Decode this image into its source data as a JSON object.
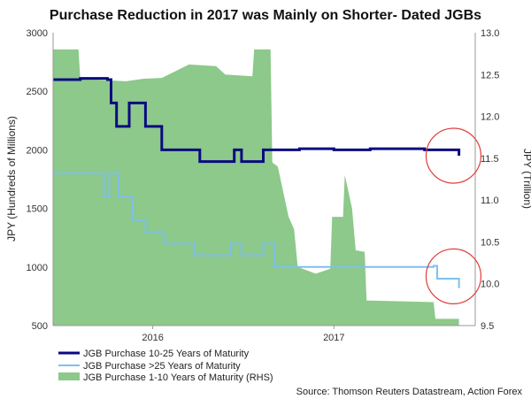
{
  "chart_data": {
    "type": "line",
    "title": "Purchase Reduction in 2017 was Mainly on Shorter- Dated JGBs",
    "ylabel_left": "JPY (Hundreds of Millions)",
    "ylabel_right": "JPY (Trillion)",
    "ylim_left": [
      500,
      3000
    ],
    "ylim_right": [
      9.5,
      13.0
    ],
    "yticks_left": [
      "500",
      "1000",
      "1500",
      "2000",
      "2500",
      "3000"
    ],
    "yticks_right": [
      "9.5",
      "10.0",
      "10.5",
      "11.0",
      "11.5",
      "12.0",
      "12.5",
      "13.0"
    ],
    "xlim": [
      2015.45,
      2017.78
    ],
    "xticks": [
      {
        "label": "2016",
        "x": 2016.0
      },
      {
        "label": "2017",
        "x": 2017.0
      }
    ],
    "series": [
      {
        "name": "JGB Purchase 10-25 Years of Maturity",
        "axis": "left",
        "color": "#0a0a80",
        "kind": "step",
        "points": [
          [
            2015.45,
            2600
          ],
          [
            2015.58,
            2600
          ],
          [
            2015.6,
            2610
          ],
          [
            2015.75,
            2600
          ],
          [
            2015.77,
            2400
          ],
          [
            2015.8,
            2200
          ],
          [
            2015.86,
            2200
          ],
          [
            2015.87,
            2400
          ],
          [
            2015.95,
            2400
          ],
          [
            2015.96,
            2200
          ],
          [
            2016.04,
            2200
          ],
          [
            2016.05,
            2000
          ],
          [
            2016.25,
            2000
          ],
          [
            2016.26,
            1900
          ],
          [
            2016.44,
            1900
          ],
          [
            2016.45,
            2000
          ],
          [
            2016.48,
            2000
          ],
          [
            2016.49,
            1900
          ],
          [
            2016.6,
            1900
          ],
          [
            2016.61,
            2000
          ],
          [
            2016.8,
            2000
          ],
          [
            2016.81,
            2010
          ],
          [
            2017.0,
            2000
          ],
          [
            2017.2,
            2010
          ],
          [
            2017.5,
            2000
          ],
          [
            2017.68,
            2000
          ],
          [
            2017.69,
            1950
          ]
        ]
      },
      {
        "name": "JGB Purchase >25 Years of Maturity",
        "axis": "left",
        "color": "#7fbfee",
        "kind": "step",
        "points": [
          [
            2015.45,
            1800
          ],
          [
            2015.72,
            1800
          ],
          [
            2015.73,
            1600
          ],
          [
            2015.75,
            1600
          ],
          [
            2015.76,
            1800
          ],
          [
            2015.8,
            1800
          ],
          [
            2015.81,
            1600
          ],
          [
            2015.88,
            1600
          ],
          [
            2015.89,
            1400
          ],
          [
            2015.95,
            1400
          ],
          [
            2015.96,
            1300
          ],
          [
            2016.05,
            1300
          ],
          [
            2016.06,
            1200
          ],
          [
            2016.22,
            1200
          ],
          [
            2016.23,
            1100
          ],
          [
            2016.42,
            1100
          ],
          [
            2016.43,
            1200
          ],
          [
            2016.48,
            1200
          ],
          [
            2016.49,
            1100
          ],
          [
            2016.6,
            1100
          ],
          [
            2016.61,
            1200
          ],
          [
            2016.66,
            1200
          ],
          [
            2016.67,
            1000
          ],
          [
            2017.4,
            1000
          ],
          [
            2017.55,
            1010
          ],
          [
            2017.57,
            900
          ],
          [
            2017.68,
            900
          ],
          [
            2017.69,
            820
          ]
        ]
      },
      {
        "name": "JGB Purchase 1-10 Years of Maturity (RHS)",
        "axis": "right",
        "color": "#8cc98a",
        "kind": "area",
        "points": [
          [
            2015.45,
            12.8
          ],
          [
            2015.59,
            12.8
          ],
          [
            2015.6,
            12.45
          ],
          [
            2015.85,
            12.42
          ],
          [
            2015.95,
            12.45
          ],
          [
            2016.05,
            12.46
          ],
          [
            2016.2,
            12.62
          ],
          [
            2016.35,
            12.6
          ],
          [
            2016.4,
            12.5
          ],
          [
            2016.55,
            12.48
          ],
          [
            2016.56,
            12.8
          ],
          [
            2016.65,
            12.8
          ],
          [
            2016.66,
            11.45
          ],
          [
            2016.69,
            11.4
          ],
          [
            2016.72,
            11.1
          ],
          [
            2016.75,
            10.8
          ],
          [
            2016.78,
            10.65
          ],
          [
            2016.8,
            10.2
          ],
          [
            2016.9,
            10.12
          ],
          [
            2016.98,
            10.18
          ],
          [
            2016.99,
            10.8
          ],
          [
            2017.05,
            10.8
          ],
          [
            2017.06,
            11.3
          ],
          [
            2017.1,
            10.9
          ],
          [
            2017.12,
            10.4
          ],
          [
            2017.17,
            10.38
          ],
          [
            2017.18,
            9.8
          ],
          [
            2017.55,
            9.78
          ],
          [
            2017.56,
            9.58
          ],
          [
            2017.69,
            9.58
          ]
        ]
      }
    ],
    "annotations": [
      {
        "type": "circle",
        "x": 2017.66,
        "y_left": 1950
      },
      {
        "type": "circle",
        "x": 2017.66,
        "y_left": 920
      }
    ],
    "legend_position": "bottom-left",
    "source": "Source: Thomson Reuters Datastream, Action Forex"
  },
  "colors": {
    "dark_blue": "#0a0a80",
    "light_blue": "#7fbfee",
    "green": "#8cc98a",
    "circle": "#e03c3c"
  }
}
